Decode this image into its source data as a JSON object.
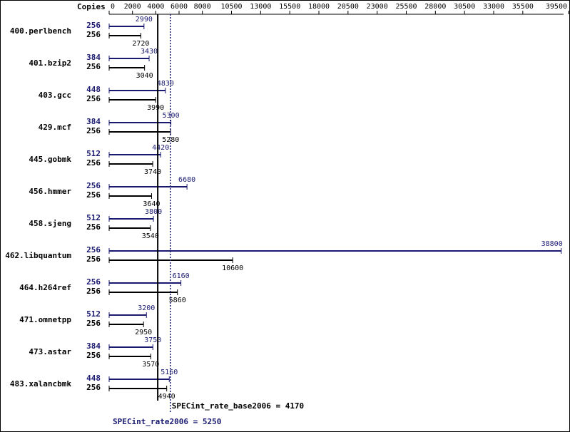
{
  "chart_data": {
    "type": "bar",
    "orientation": "horizontal",
    "axis_label": "Copies",
    "categories": [
      "400.perlbench",
      "401.bzip2",
      "403.gcc",
      "429.mcf",
      "445.gobmk",
      "456.hmmer",
      "458.sjeng",
      "462.libquantum",
      "464.h264ref",
      "471.omnetpp",
      "473.astar",
      "483.xalancbmk"
    ],
    "series": [
      {
        "color": "#191970",
        "copies": [
          256,
          384,
          448,
          384,
          512,
          256,
          512,
          256,
          256,
          512,
          384,
          448
        ],
        "values": [
          2990,
          3430,
          4830,
          5300,
          4420,
          6680,
          3800,
          38800,
          6160,
          3200,
          3750,
          5160
        ]
      },
      {
        "color": "#000000",
        "copies": [
          256,
          256,
          256,
          256,
          256,
          256,
          256,
          256,
          256,
          256,
          256,
          256
        ],
        "values": [
          2720,
          3040,
          3990,
          5280,
          3740,
          3640,
          3540,
          10600,
          5860,
          2950,
          3570,
          4940
        ]
      }
    ],
    "reference_lines": [
      {
        "label": "SPECint_rate_base2006 = 4170",
        "value": 4170,
        "color": "#000000",
        "style": "solid"
      },
      {
        "label": "SPECint_rate2006 = 5250",
        "value": 5250,
        "color": "#191970",
        "style": "dotted"
      }
    ],
    "xlim": [
      0,
      39000
    ],
    "xticks": [
      0,
      2000,
      4000,
      6000,
      8000,
      10500,
      13000,
      15500,
      18000,
      20500,
      23000,
      25500,
      28000,
      30500,
      33000,
      35500,
      39500
    ]
  }
}
